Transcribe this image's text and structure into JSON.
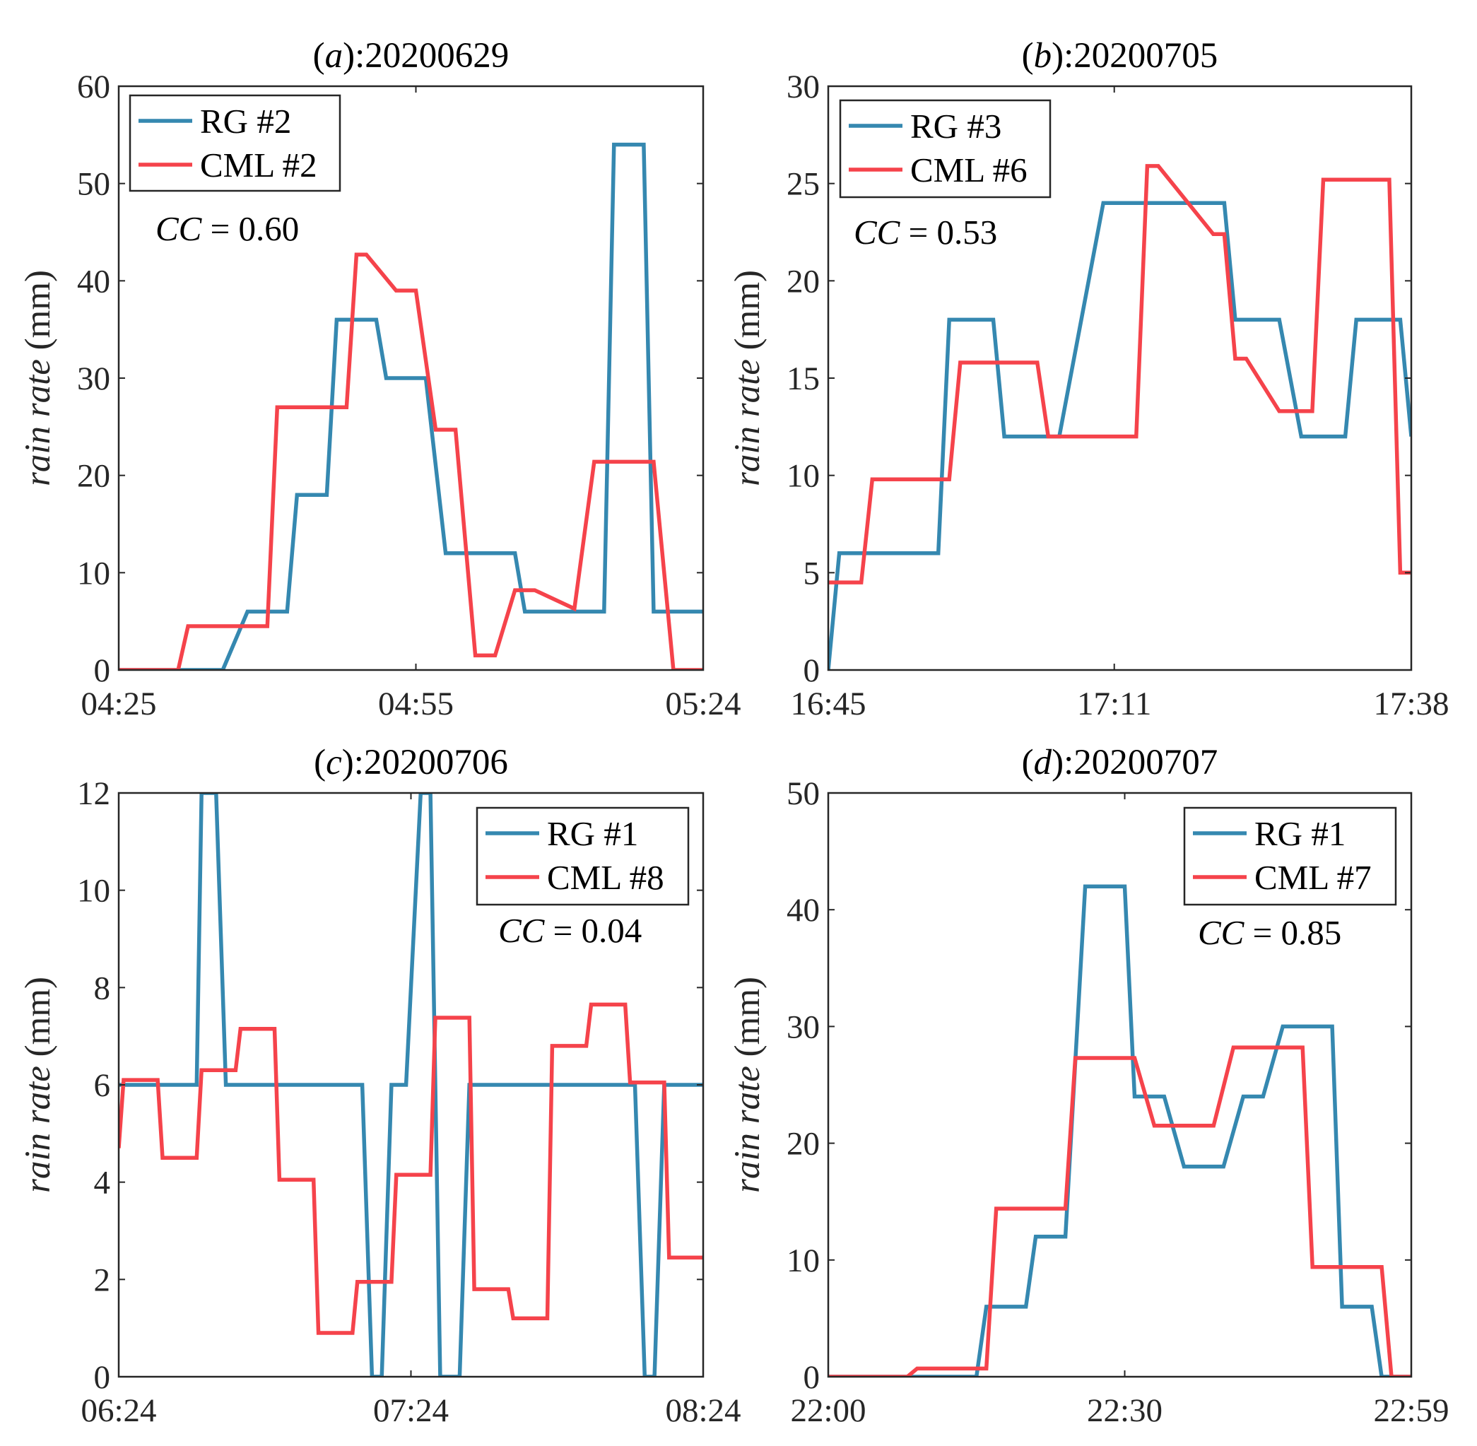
{
  "colors": {
    "rg": "#3588b0",
    "cml": "#f5434b"
  },
  "chart_data": [
    {
      "type": "line",
      "title_letter": "a",
      "title_date": ":20200629",
      "xlabel": "",
      "ylabel_italic": "rain rate",
      "ylabel_unit": " (mm)",
      "ylim": [
        0,
        60
      ],
      "yticks": [
        0,
        10,
        20,
        30,
        40,
        50,
        60
      ],
      "x_range": [
        0,
        59
      ],
      "xtick_values": [
        0,
        30,
        59
      ],
      "xtick_labels": [
        "04:25",
        "04:55",
        "05:24"
      ],
      "legend_position": "top-left",
      "cc_label": "CC",
      "cc_value": " = 0.60",
      "series": [
        {
          "name": "RG #2",
          "color_key": "rg",
          "x": [
            0,
            10,
            10.5,
            13,
            14,
            17,
            18,
            21,
            22,
            26,
            27,
            31,
            33,
            40,
            41,
            45,
            46,
            49,
            50,
            53,
            54,
            56,
            57,
            59
          ],
          "y": [
            0,
            0,
            0,
            6,
            6,
            6,
            18,
            18,
            36,
            36,
            30,
            30,
            12,
            12,
            6,
            6,
            6,
            6,
            54,
            54,
            6,
            6,
            6,
            6
          ]
        },
        {
          "name": "CML #2",
          "color_key": "cml",
          "x": [
            0,
            6,
            7,
            10,
            15,
            16,
            20,
            21,
            23,
            24,
            25,
            28,
            30,
            32,
            34,
            36,
            38,
            40,
            42,
            46,
            48,
            52,
            54,
            56,
            57,
            59
          ],
          "y": [
            0,
            0,
            4.5,
            4.5,
            4.5,
            27,
            27,
            27,
            27,
            42.7,
            42.7,
            39,
            39,
            24.7,
            24.7,
            1.5,
            1.5,
            8.2,
            8.2,
            6.3,
            21.4,
            21.4,
            21.4,
            0,
            0,
            0
          ]
        }
      ]
    },
    {
      "type": "line",
      "title_letter": "b",
      "title_date": ":20200705",
      "xlabel": "",
      "ylabel_italic": "rain rate",
      "ylabel_unit": " (mm)",
      "ylim": [
        0,
        30
      ],
      "yticks": [
        0,
        5,
        10,
        15,
        20,
        25,
        30
      ],
      "x_range": [
        0,
        53
      ],
      "xtick_values": [
        0,
        26,
        53
      ],
      "xtick_labels": [
        "16:45",
        "17:11",
        "17:38"
      ],
      "legend_position": "top-left",
      "cc_label": "CC",
      "cc_value": " = 0.53",
      "series": [
        {
          "name": "RG #3",
          "color_key": "rg",
          "x": [
            0,
            1,
            10,
            11,
            15,
            16,
            20,
            21,
            25,
            30,
            31,
            36,
            37,
            40,
            41,
            43,
            44,
            47,
            48,
            52,
            53
          ],
          "y": [
            0,
            6,
            6,
            18,
            18,
            12,
            12,
            12,
            24,
            24,
            24,
            24,
            18,
            18,
            18,
            12,
            12,
            12,
            18,
            18,
            12
          ]
        },
        {
          "name": "CML #6",
          "color_key": "cml",
          "x": [
            0,
            3,
            4,
            11,
            12,
            19,
            20,
            27,
            28,
            29,
            30,
            35,
            36,
            37,
            38,
            41,
            42,
            44,
            45,
            48,
            49,
            51,
            52,
            53
          ],
          "y": [
            4.5,
            4.5,
            9.8,
            9.8,
            15.8,
            15.8,
            12,
            12,
            12,
            25.9,
            25.9,
            22.4,
            22.4,
            16,
            16,
            13.3,
            13.3,
            13.3,
            25.2,
            25.2,
            25.2,
            25.2,
            5,
            5
          ]
        }
      ]
    },
    {
      "type": "line",
      "title_letter": "c",
      "title_date": ":20200706",
      "xlabel": "",
      "ylabel_italic": "rain rate",
      "ylabel_unit": " (mm)",
      "ylim": [
        0,
        12
      ],
      "yticks": [
        0,
        2,
        4,
        6,
        8,
        10,
        12
      ],
      "x_range": [
        0,
        60
      ],
      "xtick_values": [
        0,
        30,
        60
      ],
      "xtick_labels": [
        "06:24",
        "07:24",
        "08:24"
      ],
      "legend_position": "top-right",
      "cc_label": "CC",
      "cc_value": " = 0.04",
      "series": [
        {
          "name": "RG #1",
          "color_key": "rg",
          "x": [
            0,
            0.5,
            8,
            8.5,
            10,
            11,
            17,
            25,
            26,
            27,
            28,
            28.5,
            29.5,
            31,
            32,
            33,
            35,
            36,
            53,
            54,
            55,
            56,
            57,
            60
          ],
          "y": [
            6,
            6,
            6,
            12,
            12,
            6,
            6,
            6,
            0,
            0,
            6,
            6,
            6,
            12,
            12,
            0,
            0,
            6,
            6,
            0,
            0,
            6,
            6,
            6
          ]
        },
        {
          "name": "CML #8",
          "color_key": "cml",
          "x": [
            0,
            0.5,
            4,
            4.5,
            8,
            8.5,
            12,
            12.5,
            16,
            16.5,
            20,
            20.5,
            24,
            24.5,
            28,
            28.5,
            32,
            32.5,
            36,
            36.5,
            40,
            40.5,
            44,
            44.5,
            48,
            48.5,
            52,
            52.5,
            56,
            56.5,
            60
          ],
          "y": [
            4.7,
            6.1,
            6.1,
            4.5,
            4.5,
            6.3,
            6.3,
            7.15,
            7.15,
            4.05,
            4.05,
            0.9,
            0.9,
            1.95,
            1.95,
            4.15,
            4.15,
            7.38,
            7.38,
            1.8,
            1.8,
            1.2,
            1.2,
            6.8,
            6.8,
            7.65,
            7.65,
            6.05,
            6.05,
            2.45,
            2.45
          ]
        }
      ]
    },
    {
      "type": "line",
      "title_letter": "d",
      "title_date": ":20200707",
      "xlabel": "",
      "ylabel_italic": "rain rate",
      "ylabel_unit": " (mm)",
      "ylim": [
        0,
        50
      ],
      "yticks": [
        0,
        10,
        20,
        30,
        40,
        50
      ],
      "x_range": [
        0,
        59
      ],
      "xtick_values": [
        0,
        30,
        59
      ],
      "xtick_labels": [
        "22:00",
        "22:30",
        "22:59"
      ],
      "legend_position": "top-right",
      "cc_label": "CC",
      "cc_value": " = 0.85",
      "series": [
        {
          "name": "RG #1",
          "color_key": "rg",
          "x": [
            0,
            15,
            16,
            20,
            21,
            24,
            26,
            30,
            31,
            34,
            36,
            40,
            42,
            44,
            46,
            51,
            52,
            55,
            56,
            59
          ],
          "y": [
            0,
            0,
            6,
            6,
            12,
            12,
            42,
            42,
            24,
            24,
            18,
            18,
            24,
            24,
            30,
            30,
            6,
            6,
            0,
            0
          ]
        },
        {
          "name": "CML #7",
          "color_key": "cml",
          "x": [
            0,
            8,
            9,
            16,
            17,
            24,
            25,
            31,
            33,
            39,
            41,
            48,
            49,
            56,
            57,
            59
          ],
          "y": [
            0,
            0,
            0.7,
            0.7,
            14.4,
            14.4,
            27.3,
            27.3,
            21.5,
            21.5,
            28.2,
            28.2,
            9.4,
            9.4,
            0,
            0
          ]
        }
      ]
    }
  ]
}
